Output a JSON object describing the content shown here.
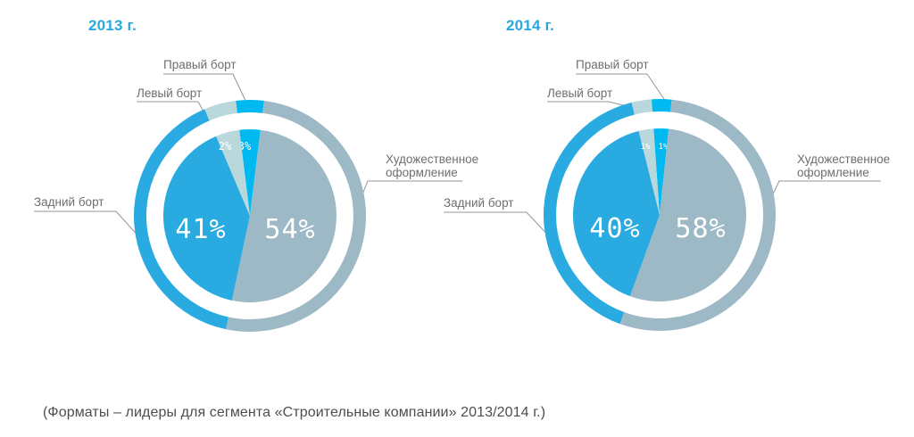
{
  "meta": {
    "background": "#ffffff"
  },
  "palette": {
    "accent_blue": "#29abe2",
    "bright_cyan": "#00b9f0",
    "pale_blue": "#b9d8dc",
    "gray_blue": "#9db9c6",
    "label_gray": "#6d6e71",
    "leader_line_gray": "#939598",
    "caption_color": "#4d4d4f",
    "percent_text": "#ffffff"
  },
  "caption": "(Форматы – лидеры для сегмента «Строительные компании» 2013/2014 г.)",
  "chart_data": [
    {
      "type": "pie",
      "title": "2013 г.",
      "unit": "%",
      "style": "pie-with-outer-ring",
      "legend_position": "callout-labels",
      "slices": [
        {
          "label": "Правый борт",
          "value": 3,
          "pct_label": "3%",
          "color": "#00b9f0",
          "display_start_deg": -7,
          "display_span_deg": 14
        },
        {
          "label": "Художественное оформление",
          "value": 54,
          "pct_label": "54%",
          "color": "#9db9c6",
          "display_start_deg": 7,
          "display_span_deg": 185
        },
        {
          "label": "Задний борт",
          "value": 41,
          "pct_label": "41%",
          "color": "#29abe2",
          "display_start_deg": 192,
          "display_span_deg": 145
        },
        {
          "label": "Левый борт",
          "value": 2,
          "pct_label": "2%",
          "color": "#b9d8dc",
          "display_start_deg": 337,
          "display_span_deg": 16
        }
      ]
    },
    {
      "type": "pie",
      "title": "2014 г.",
      "unit": "%",
      "style": "pie-with-outer-ring",
      "legend_position": "callout-labels",
      "slices": [
        {
          "label": "Правый борт",
          "value": 1,
          "pct_label": "1%",
          "color": "#00b9f0",
          "display_start_deg": -4,
          "display_span_deg": 10
        },
        {
          "label": "Художественное оформление",
          "value": 58,
          "pct_label": "58%",
          "color": "#9db9c6",
          "display_start_deg": 6,
          "display_span_deg": 194
        },
        {
          "label": "Задний борт",
          "value": 40,
          "pct_label": "40%",
          "color": "#29abe2",
          "display_start_deg": 200,
          "display_span_deg": 146
        },
        {
          "label": "Левый борт",
          "value": 1,
          "pct_label": "1%",
          "color": "#b9d8dc",
          "display_start_deg": 346,
          "display_span_deg": 10
        }
      ]
    }
  ]
}
